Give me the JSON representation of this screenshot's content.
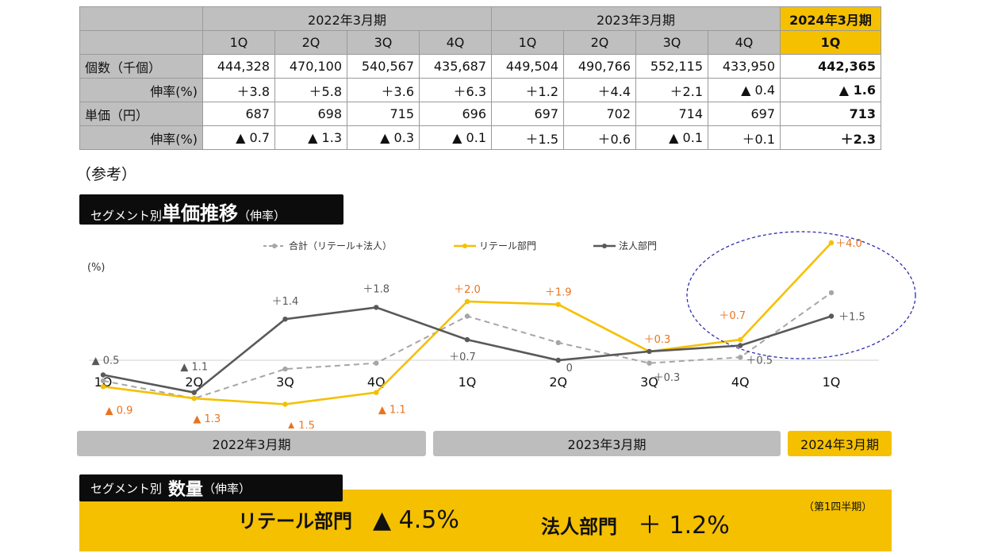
{
  "table": {
    "periods": [
      {
        "label": "2022年3月期"
      },
      {
        "label": "2023年3月期"
      },
      {
        "label": "2024年3月期"
      }
    ],
    "quarters": [
      "1Q",
      "2Q",
      "3Q",
      "4Q",
      "1Q",
      "2Q",
      "3Q",
      "4Q",
      "1Q"
    ],
    "rows": [
      {
        "label": "個数（千個）",
        "cells": [
          "444,328",
          "470,100",
          "540,567",
          "435,687",
          "449,504",
          "490,766",
          "552,115",
          "433,950",
          "442,365"
        ]
      },
      {
        "label": "伸率(%)",
        "cells": [
          "＋3.8",
          "＋5.8",
          "＋3.6",
          "＋6.3",
          "＋1.2",
          "＋4.4",
          "＋2.1",
          "▲ 0.4",
          "▲ 1.6"
        ]
      },
      {
        "label": "単価（円）",
        "cells": [
          "687",
          "698",
          "715",
          "696",
          "697",
          "702",
          "714",
          "697",
          "713"
        ]
      },
      {
        "label": "伸率(%)",
        "cells": [
          "▲ 0.7",
          "▲ 1.3",
          "▲ 0.3",
          "▲ 0.1",
          "＋1.5",
          "＋0.6",
          "▲ 0.1",
          "＋0.1",
          "＋2.3"
        ]
      }
    ]
  },
  "reference_label": "（参考）",
  "banner1": {
    "prefix": "セグメント別",
    "main": "単価推移",
    "suffix": "（伸率）"
  },
  "chart_data": {
    "type": "line",
    "ylabel": "(%)",
    "categories": [
      "1Q",
      "2Q",
      "3Q",
      "4Q",
      "1Q",
      "2Q",
      "3Q",
      "4Q",
      "1Q"
    ],
    "ylim": [
      -2.5,
      4.5
    ],
    "series": [
      {
        "name": "合計（リテール+法人）",
        "color": "#a6a6a6",
        "dashed": true,
        "values": [
          -0.7,
          -1.3,
          -0.3,
          -0.1,
          1.5,
          0.6,
          -0.1,
          0.1,
          2.3
        ],
        "labels": []
      },
      {
        "name": "リテール部門",
        "color": "#f5c000",
        "dashed": false,
        "values": [
          -0.9,
          -1.3,
          -1.5,
          -1.1,
          2.0,
          1.9,
          0.3,
          0.7,
          4.0
        ],
        "labels": [
          "▲ 0.9",
          "▲ 1.3",
          "▲ 1.5",
          "▲ 1.1",
          "＋2.0",
          "＋1.9",
          "＋0.3",
          "＋0.7",
          "＋4.0"
        ],
        "label_color": "#e8731e"
      },
      {
        "name": "法人部門",
        "color": "#595959",
        "dashed": false,
        "values": [
          -0.5,
          -1.1,
          1.4,
          1.8,
          0.7,
          0.0,
          0.3,
          0.5,
          1.5
        ],
        "labels": [
          "▲ 0.5",
          "▲ 1.1",
          "＋1.4",
          "＋1.8",
          "＋0.7",
          "0",
          "＋0.3",
          "＋0.5",
          "＋1.5"
        ],
        "label_color": "#595959"
      }
    ],
    "highlight": "2024年3月期 1Q circled"
  },
  "period_bars": [
    "2022年3月期",
    "2023年3月期",
    "2024年3月期"
  ],
  "banner2": {
    "prefix": "セグメント別",
    "main": "数量",
    "suffix": "（伸率）"
  },
  "quarter_note": "（第1四半期）",
  "metrics": [
    {
      "label": "リテール部門",
      "value": "▲ 4.5%"
    },
    {
      "label": "法人部門",
      "value": "＋ 1.2%"
    }
  ],
  "colors": {
    "yellow": "#f5c000",
    "gray": "#bfbfbf",
    "dark": "#0c0c0c",
    "orange": "#e8731e",
    "ellipse": "#2f2fb0"
  }
}
